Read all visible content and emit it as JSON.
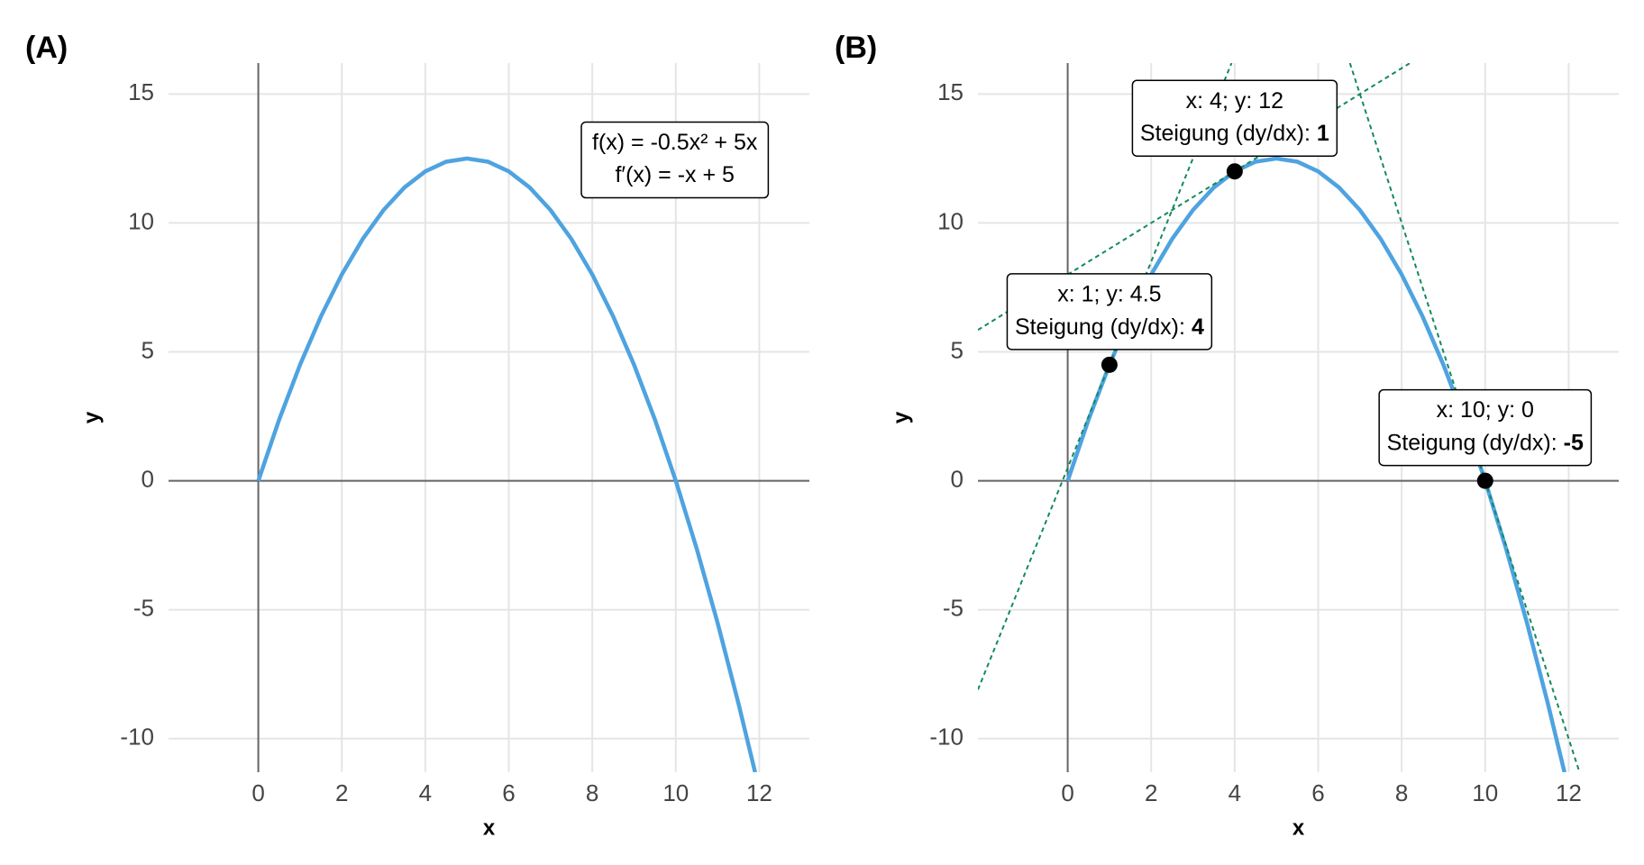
{
  "chart_data": [
    {
      "type": "line",
      "panel_label": "(A)",
      "x_label": "x",
      "y_label": "y",
      "xlim": [
        -2.15,
        13.2
      ],
      "ylim": [
        -11.3,
        16.2
      ],
      "xticks": [
        0,
        2,
        4,
        6,
        8,
        10,
        12
      ],
      "yticks": [
        -10,
        -5,
        0,
        5,
        10,
        15
      ],
      "grid": true,
      "series": [
        {
          "color": "#4ea3e0",
          "style": "solid",
          "x": [
            0,
            0.5,
            1,
            1.5,
            2,
            2.5,
            3,
            3.5,
            4,
            4.5,
            5,
            5.5,
            6,
            6.5,
            7,
            7.5,
            8,
            8.5,
            9,
            9.5,
            10,
            10.5,
            11,
            11.5,
            11.9
          ],
          "values": [
            0,
            2.375,
            4.5,
            6.375,
            8,
            9.375,
            10.5,
            11.375,
            12,
            12.375,
            12.5,
            12.375,
            12,
            11.375,
            10.5,
            9.375,
            8,
            6.375,
            4.5,
            2.375,
            0,
            -2.625,
            -5.5,
            -8.625,
            -11.305
          ]
        }
      ],
      "annotations": [
        {
          "lines": [
            "f(x) = -0.5x² + 5x",
            "f′(x) = -x + 5"
          ]
        }
      ]
    },
    {
      "type": "line",
      "panel_label": "(B)",
      "x_label": "x",
      "y_label": "y",
      "xlim": [
        -2.15,
        13.2
      ],
      "ylim": [
        -11.3,
        16.2
      ],
      "xticks": [
        0,
        2,
        4,
        6,
        8,
        10,
        12
      ],
      "yticks": [
        -10,
        -5,
        0,
        5,
        10,
        15
      ],
      "grid": true,
      "series": [
        {
          "color": "#4ea3e0",
          "style": "solid",
          "x": [
            0,
            0.5,
            1,
            1.5,
            2,
            2.5,
            3,
            3.5,
            4,
            4.5,
            5,
            5.5,
            6,
            6.5,
            7,
            7.5,
            8,
            8.5,
            9,
            9.5,
            10,
            10.5,
            11,
            11.5,
            11.9
          ],
          "values": [
            0,
            2.375,
            4.5,
            6.375,
            8,
            9.375,
            10.5,
            11.375,
            12,
            12.375,
            12.5,
            12.375,
            12,
            11.375,
            10.5,
            9.375,
            8,
            6.375,
            4.5,
            2.375,
            0,
            -2.625,
            -5.5,
            -8.625,
            -11.305
          ]
        },
        {
          "color": "#138a5e",
          "style": "dashed",
          "x": [
            -2.15,
            3.925
          ],
          "values": [
            -8.1,
            16.2
          ]
        },
        {
          "color": "#138a5e",
          "style": "dashed",
          "x": [
            -2.15,
            8.2
          ],
          "values": [
            5.85,
            16.2
          ]
        },
        {
          "color": "#138a5e",
          "style": "dashed",
          "x": [
            6.76,
            12.26
          ],
          "values": [
            16.2,
            -11.3
          ]
        }
      ],
      "points": {
        "color": "#000000",
        "x": [
          1,
          4,
          10
        ],
        "values": [
          4.5,
          12,
          0
        ]
      },
      "point_labels": [
        {
          "text": "x: 1; y: 4.5",
          "slope_text": "Steigung (dy/dx):",
          "slope": 4
        },
        {
          "text": "x: 4; y: 12",
          "slope_text": "Steigung (dy/dx):",
          "slope": 1
        },
        {
          "text": "x: 10; y: 0",
          "slope_text": "Steigung (dy/dx):",
          "slope": -5
        }
      ]
    }
  ]
}
